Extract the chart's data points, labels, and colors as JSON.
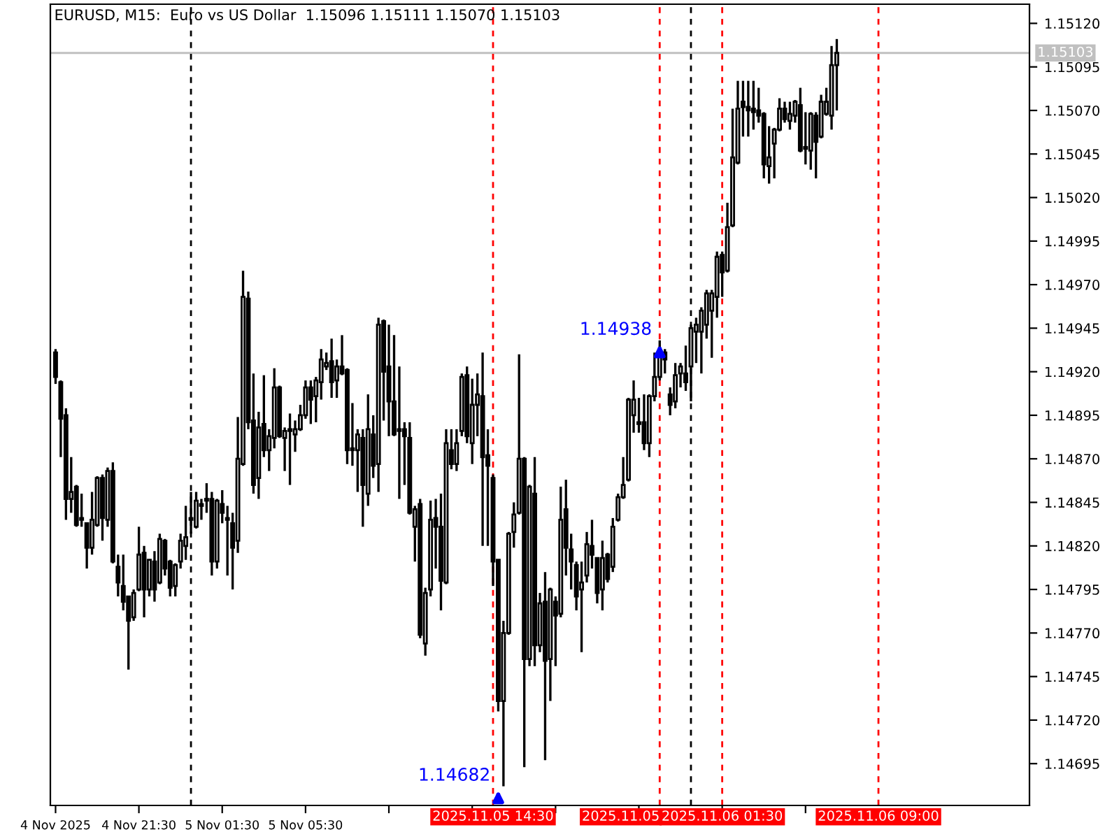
{
  "chart_data": {
    "type": "candlestick",
    "title": "EURUSD, M15:  Euro vs US Dollar  1.15096 1.15111 1.15070 1.15103",
    "x": [
      "2025-11-04T17:30",
      "2025-11-04T17:45",
      "2025-11-04T18:00",
      "2025-11-04T18:15",
      "2025-11-04T18:30",
      "2025-11-04T18:45",
      "2025-11-04T19:00",
      "2025-11-04T19:15",
      "2025-11-04T19:30",
      "2025-11-04T19:45",
      "2025-11-04T20:00",
      "2025-11-04T20:15",
      "2025-11-04T20:30",
      "2025-11-04T20:45",
      "2025-11-04T21:00",
      "2025-11-04T21:15",
      "2025-11-04T21:30",
      "2025-11-04T21:45",
      "2025-11-04T22:00",
      "2025-11-04T22:15",
      "2025-11-04T22:30",
      "2025-11-04T22:45",
      "2025-11-04T23:00",
      "2025-11-04T23:15",
      "2025-11-04T23:30",
      "2025-11-04T23:45",
      "2025-11-05T00:00",
      "2025-11-05T00:15",
      "2025-11-05T00:30",
      "2025-11-05T00:45",
      "2025-11-05T01:00",
      "2025-11-05T01:15",
      "2025-11-05T01:30",
      "2025-11-05T01:45",
      "2025-11-05T02:00",
      "2025-11-05T02:15",
      "2025-11-05T02:30",
      "2025-11-05T02:45",
      "2025-11-05T03:00",
      "2025-11-05T03:15",
      "2025-11-05T03:30",
      "2025-11-05T03:45",
      "2025-11-05T04:00",
      "2025-11-05T04:15",
      "2025-11-05T04:30",
      "2025-11-05T04:45",
      "2025-11-05T05:00",
      "2025-11-05T05:15",
      "2025-11-05T05:30",
      "2025-11-05T05:45",
      "2025-11-05T06:00",
      "2025-11-05T06:15",
      "2025-11-05T06:30",
      "2025-11-05T06:45",
      "2025-11-05T07:00",
      "2025-11-05T07:15",
      "2025-11-05T07:30",
      "2025-11-05T07:45",
      "2025-11-05T08:00",
      "2025-11-05T08:15",
      "2025-11-05T08:30",
      "2025-11-05T08:45",
      "2025-11-05T09:00",
      "2025-11-05T09:15",
      "2025-11-05T09:30",
      "2025-11-05T09:45",
      "2025-11-05T10:00",
      "2025-11-05T10:15",
      "2025-11-05T10:30",
      "2025-11-05T10:45",
      "2025-11-05T11:00",
      "2025-11-05T11:15",
      "2025-11-05T11:30",
      "2025-11-05T11:45",
      "2025-11-05T12:00",
      "2025-11-05T12:15",
      "2025-11-05T12:30",
      "2025-11-05T12:45",
      "2025-11-05T13:00",
      "2025-11-05T13:15",
      "2025-11-05T13:30",
      "2025-11-05T13:45",
      "2025-11-05T14:00",
      "2025-11-05T14:15",
      "2025-11-05T14:30",
      "2025-11-05T14:45",
      "2025-11-05T15:00",
      "2025-11-05T15:15",
      "2025-11-05T15:30",
      "2025-11-05T15:45",
      "2025-11-05T16:00",
      "2025-11-05T16:15",
      "2025-11-05T16:30",
      "2025-11-05T16:45",
      "2025-11-05T17:00",
      "2025-11-05T17:15",
      "2025-11-05T17:30",
      "2025-11-05T17:45",
      "2025-11-05T18:00",
      "2025-11-05T18:15",
      "2025-11-05T18:30",
      "2025-11-05T18:45",
      "2025-11-05T19:00",
      "2025-11-05T19:15",
      "2025-11-05T19:30",
      "2025-11-05T19:45",
      "2025-11-05T20:00",
      "2025-11-05T20:15",
      "2025-11-05T20:30",
      "2025-11-05T20:45",
      "2025-11-05T21:00",
      "2025-11-05T21:15",
      "2025-11-05T21:30",
      "2025-11-05T21:45",
      "2025-11-05T22:00",
      "2025-11-05T22:15",
      "2025-11-05T22:30",
      "2025-11-05T22:45",
      "2025-11-05T23:00",
      "2025-11-05T23:15",
      "2025-11-05T23:30",
      "2025-11-05T23:45",
      "2025-11-06T00:00",
      "2025-11-06T00:15",
      "2025-11-06T00:30",
      "2025-11-06T00:45",
      "2025-11-06T01:00",
      "2025-11-06T01:15",
      "2025-11-06T01:30",
      "2025-11-06T01:45",
      "2025-11-06T02:00",
      "2025-11-06T02:15",
      "2025-11-06T02:30",
      "2025-11-06T02:45",
      "2025-11-06T03:00",
      "2025-11-06T03:15",
      "2025-11-06T03:30",
      "2025-11-06T03:45",
      "2025-11-06T04:00",
      "2025-11-06T04:15",
      "2025-11-06T04:30",
      "2025-11-06T04:45",
      "2025-11-06T05:00",
      "2025-11-06T05:15",
      "2025-11-06T05:30",
      "2025-11-06T05:45",
      "2025-11-06T06:00",
      "2025-11-06T06:15",
      "2025-11-06T06:30",
      "2025-11-06T06:45",
      "2025-11-06T07:00"
    ],
    "ohlc": [
      [
        1.14931,
        1.14933,
        1.14913,
        1.14917
      ],
      [
        1.14914,
        1.14915,
        1.14871,
        1.14893
      ],
      [
        1.14895,
        1.14899,
        1.14835,
        1.14847
      ],
      [
        1.14847,
        1.14871,
        1.14839,
        1.14851
      ],
      [
        1.14854,
        1.14855,
        1.14831,
        1.14832
      ],
      [
        1.14835,
        1.1485,
        1.14831,
        1.14836
      ],
      [
        1.14833,
        1.14833,
        1.14807,
        1.14819
      ],
      [
        1.14819,
        1.14851,
        1.14815,
        1.14835
      ],
      [
        1.14832,
        1.1486,
        1.14831,
        1.14859
      ],
      [
        1.14859,
        1.14861,
        1.14823,
        1.14836
      ],
      [
        1.14835,
        1.14865,
        1.14831,
        1.14863
      ],
      [
        1.14863,
        1.14868,
        1.1481,
        1.14811
      ],
      [
        1.14808,
        1.14815,
        1.14791,
        1.14799
      ],
      [
        1.14797,
        1.14815,
        1.14783,
        1.14788
      ],
      [
        1.14791,
        1.14791,
        1.14749,
        1.14777
      ],
      [
        1.14779,
        1.14795,
        1.14777,
        1.14793
      ],
      [
        1.14795,
        1.14831,
        1.14794,
        1.14815
      ],
      [
        1.14816,
        1.1482,
        1.14779,
        1.14795
      ],
      [
        1.14795,
        1.14812,
        1.14791,
        1.14812
      ],
      [
        1.14811,
        1.14817,
        1.14788,
        1.14795
      ],
      [
        1.14799,
        1.14827,
        1.14798,
        1.14824
      ],
      [
        1.14823,
        1.14824,
        1.14803,
        1.14807
      ],
      [
        1.14811,
        1.14812,
        1.14791,
        1.14796
      ],
      [
        1.14797,
        1.1481,
        1.14791,
        1.14809
      ],
      [
        1.14811,
        1.14827,
        1.14807,
        1.14823
      ],
      [
        1.1482,
        1.14843,
        1.14812,
        1.14825
      ],
      [
        1.14835,
        1.14851,
        1.14827,
        1.14836
      ],
      [
        1.14831,
        1.14851,
        1.1483,
        1.14846
      ],
      [
        1.14843,
        1.14847,
        1.14835,
        1.14844
      ],
      [
        1.14846,
        1.14856,
        1.14839,
        1.14847
      ],
      [
        1.14847,
        1.14851,
        1.14803,
        1.14811
      ],
      [
        1.14811,
        1.14847,
        1.14807,
        1.14846
      ],
      [
        1.14844,
        1.14852,
        1.14833,
        1.14839
      ],
      [
        1.14836,
        1.14843,
        1.14803,
        1.14835
      ],
      [
        1.14833,
        1.14839,
        1.14795,
        1.14819
      ],
      [
        1.14823,
        1.14894,
        1.14816,
        1.1487
      ],
      [
        1.14867,
        1.14978,
        1.14866,
        1.14963
      ],
      [
        1.14962,
        1.14966,
        1.14887,
        1.14891
      ],
      [
        1.14892,
        1.14919,
        1.1485,
        1.14855
      ],
      [
        1.14859,
        1.14897,
        1.14847,
        1.14888
      ],
      [
        1.1489,
        1.14918,
        1.14871,
        1.14875
      ],
      [
        1.14875,
        1.14887,
        1.14863,
        1.14883
      ],
      [
        1.14882,
        1.14922,
        1.14876,
        1.14911
      ],
      [
        1.14911,
        1.14912,
        1.14882,
        1.14883
      ],
      [
        1.14882,
        1.14888,
        1.14863,
        1.14886
      ],
      [
        1.14887,
        1.14896,
        1.14855,
        1.14886
      ],
      [
        1.14884,
        1.14892,
        1.14874,
        1.14887
      ],
      [
        1.14887,
        1.14901,
        1.14886,
        1.14895
      ],
      [
        1.14895,
        1.14915,
        1.14893,
        1.14911
      ],
      [
        1.14911,
        1.14915,
        1.1489,
        1.14904
      ],
      [
        1.14906,
        1.14917,
        1.14891,
        1.14915
      ],
      [
        1.14914,
        1.14933,
        1.14904,
        1.14927
      ],
      [
        1.14923,
        1.14931,
        1.14921,
        1.14925
      ],
      [
        1.14926,
        1.14939,
        1.14905,
        1.14914
      ],
      [
        1.14915,
        1.14927,
        1.14905,
        1.14923
      ],
      [
        1.14923,
        1.14941,
        1.14918,
        1.14919
      ],
      [
        1.14921,
        1.14922,
        1.14867,
        1.14875
      ],
      [
        1.14875,
        1.14902,
        1.14866,
        1.14876
      ],
      [
        1.14875,
        1.14887,
        1.14851,
        1.14884
      ],
      [
        1.14882,
        1.14887,
        1.14831,
        1.14855
      ],
      [
        1.1485,
        1.14907,
        1.14843,
        1.14887
      ],
      [
        1.14884,
        1.14895,
        1.14859,
        1.14866
      ],
      [
        1.14867,
        1.14951,
        1.14851,
        1.14947
      ],
      [
        1.14949,
        1.1495,
        1.14892,
        1.1492
      ],
      [
        1.14923,
        1.14947,
        1.14883,
        1.14903
      ],
      [
        1.14903,
        1.14941,
        1.14883,
        1.14884
      ],
      [
        1.14887,
        1.14923,
        1.14847,
        1.14886
      ],
      [
        1.14887,
        1.14891,
        1.14855,
        1.14883
      ],
      [
        1.14882,
        1.14891,
        1.14838,
        1.14839
      ],
      [
        1.14831,
        1.14843,
        1.14811,
        1.14841
      ],
      [
        1.14844,
        1.14847,
        1.14767,
        1.14769
      ],
      [
        1.14764,
        1.14796,
        1.14757,
        1.14793
      ],
      [
        1.14795,
        1.14846,
        1.14791,
        1.14835
      ],
      [
        1.14836,
        1.14847,
        1.14807,
        1.14831
      ],
      [
        1.14831,
        1.1485,
        1.14783,
        1.148
      ],
      [
        1.14799,
        1.14887,
        1.14798,
        1.14879
      ],
      [
        1.14875,
        1.14887,
        1.14864,
        1.14867
      ],
      [
        1.14867,
        1.14887,
        1.14863,
        1.14879
      ],
      [
        1.14886,
        1.14919,
        1.14883,
        1.14917
      ],
      [
        1.14918,
        1.14923,
        1.14879,
        1.14883
      ],
      [
        1.14879,
        1.14916,
        1.14867,
        1.14901
      ],
      [
        1.14901,
        1.14919,
        1.14883,
        1.14907
      ],
      [
        1.14906,
        1.14931,
        1.1482,
        1.14871
      ],
      [
        1.14872,
        1.14887,
        1.1482,
        1.14866
      ],
      [
        1.14859,
        1.14861,
        1.14797,
        1.14811
      ],
      [
        1.14812,
        1.14812,
        1.14725,
        1.14731
      ],
      [
        1.14731,
        1.14777,
        1.14682,
        1.1477
      ],
      [
        1.1477,
        1.14828,
        1.14769,
        1.14827
      ],
      [
        1.14828,
        1.14845,
        1.14819,
        1.14838
      ],
      [
        1.14839,
        1.1493,
        1.14838,
        1.1487
      ],
      [
        1.1487,
        1.14871,
        1.14693,
        1.14755
      ],
      [
        1.14755,
        1.14855,
        1.14751,
        1.14854
      ],
      [
        1.1485,
        1.14871,
        1.14751,
        1.14763
      ],
      [
        1.14763,
        1.14793,
        1.14759,
        1.14787
      ],
      [
        1.14788,
        1.14805,
        1.14697,
        1.14754
      ],
      [
        1.14755,
        1.14796,
        1.14731,
        1.14795
      ],
      [
        1.14788,
        1.14791,
        1.14751,
        1.1478
      ],
      [
        1.14781,
        1.14854,
        1.14779,
        1.14835
      ],
      [
        1.14841,
        1.14858,
        1.14803,
        1.14819
      ],
      [
        1.14818,
        1.14827,
        1.14795,
        1.14811
      ],
      [
        1.14809,
        1.14811,
        1.14783,
        1.14791
      ],
      [
        1.14795,
        1.14811,
        1.14759,
        1.14799
      ],
      [
        1.14803,
        1.14828,
        1.14799,
        1.14821
      ],
      [
        1.1482,
        1.14835,
        1.14807,
        1.14815
      ],
      [
        1.14813,
        1.14813,
        1.14787,
        1.14793
      ],
      [
        1.14795,
        1.14823,
        1.14783,
        1.14813
      ],
      [
        1.14815,
        1.14816,
        1.14799,
        1.14801
      ],
      [
        1.14808,
        1.14836,
        1.14805,
        1.14831
      ],
      [
        1.14835,
        1.1485,
        1.14834,
        1.14848
      ],
      [
        1.14848,
        1.14871,
        1.14847,
        1.14855
      ],
      [
        1.14858,
        1.14905,
        1.14857,
        1.14904
      ],
      [
        1.14895,
        1.14915,
        1.14885,
        1.14904
      ],
      [
        1.14891,
        1.14905,
        1.14885,
        1.1489
      ],
      [
        1.14891,
        1.14907,
        1.14875,
        1.14879
      ],
      [
        1.14879,
        1.14907,
        1.14871,
        1.14906
      ],
      [
        1.14906,
        1.14931,
        1.14903,
        1.14917
      ],
      [
        1.14917,
        1.14938,
        1.14915,
        1.1493
      ],
      [
        1.14931,
        1.14933,
        1.14919,
        1.14927
      ],
      [
        1.14907,
        1.14911,
        1.14895,
        1.14901
      ],
      [
        1.14903,
        1.14925,
        1.14899,
        1.14918
      ],
      [
        1.14919,
        1.14925,
        1.14911,
        1.14923
      ],
      [
        1.14919,
        1.14935,
        1.14909,
        1.14914
      ],
      [
        1.14923,
        1.14947,
        1.14903,
        1.14945
      ],
      [
        1.14943,
        1.14951,
        1.14925,
        1.14947
      ],
      [
        1.14943,
        1.14957,
        1.14919,
        1.14955
      ],
      [
        1.14947,
        1.14967,
        1.14939,
        1.14965
      ],
      [
        1.14955,
        1.14967,
        1.14928,
        1.14965
      ],
      [
        1.14963,
        1.14989,
        1.14951,
        1.14986
      ],
      [
        1.14987,
        1.14989,
        1.14963,
        1.14977
      ],
      [
        1.14978,
        1.15017,
        1.14977,
        1.15003
      ],
      [
        1.15004,
        1.15071,
        1.15003,
        1.15043
      ],
      [
        1.1504,
        1.15087,
        1.15039,
        1.15071
      ],
      [
        1.15075,
        1.15087,
        1.15055,
        1.15072
      ],
      [
        1.15072,
        1.15087,
        1.15055,
        1.1507
      ],
      [
        1.15071,
        1.15087,
        1.15059,
        1.15069
      ],
      [
        1.1507,
        1.15083,
        1.15063,
        1.15067
      ],
      [
        1.15068,
        1.15069,
        1.15031,
        1.15039
      ],
      [
        1.15038,
        1.15061,
        1.15028,
        1.15043
      ],
      [
        1.15051,
        1.1506,
        1.15031,
        1.15059
      ],
      [
        1.15059,
        1.15077,
        1.15058,
        1.15071
      ],
      [
        1.15071,
        1.15075,
        1.15063,
        1.15065
      ],
      [
        1.15064,
        1.15075,
        1.15059,
        1.15068
      ],
      [
        1.15067,
        1.15076,
        1.15063,
        1.15075
      ],
      [
        1.15073,
        1.15083,
        1.15046,
        1.15047
      ],
      [
        1.15049,
        1.15069,
        1.15039,
        1.15048
      ],
      [
        1.15047,
        1.15069,
        1.15036,
        1.15068
      ],
      [
        1.15067,
        1.15069,
        1.15031,
        1.15052
      ],
      [
        1.15055,
        1.15079,
        1.15054,
        1.15075
      ],
      [
        1.15068,
        1.15083,
        1.15067,
        1.15075
      ],
      [
        1.15067,
        1.15107,
        1.15059,
        1.15096
      ],
      [
        1.15096,
        1.15111,
        1.1507,
        1.15103
      ]
    ],
    "xlim": [
      "2025-11-04T17:15",
      "2025-11-06T16:15"
    ],
    "xticks": [
      {
        "value": "2025-11-04T17:30",
        "label": "4 Nov 2025"
      },
      {
        "value": "2025-11-04T21:30",
        "label": "4 Nov 21:30"
      },
      {
        "value": "2025-11-05T01:30",
        "label": "5 Nov 01:30"
      },
      {
        "value": "2025-11-05T05:30",
        "label": "5 Nov 05:30"
      },
      {
        "value": "2025-11-05T09:30",
        "label": null
      },
      {
        "value": "2025-11-05T13:30",
        "label": null
      },
      {
        "value": "2025-11-05T17:30",
        "label": null
      },
      {
        "value": "2025-11-05T21:30",
        "label": null
      },
      {
        "value": "2025-11-06T01:30",
        "label": null
      },
      {
        "value": "2025-11-06T05:30",
        "label": null
      }
    ],
    "ylim": [
      1.14671,
      1.15131
    ],
    "yticks": [
      1.14695,
      {
        "value": 1.1472,
        "label": "1.14720"
      },
      1.14745,
      {
        "value": 1.1477,
        "label": "1.14770"
      },
      1.14795,
      {
        "value": 1.1482,
        "label": "1.14820"
      },
      1.14845,
      {
        "value": 1.1487,
        "label": "1.14870"
      },
      1.14895,
      {
        "value": 1.1492,
        "label": "1.14920"
      },
      1.14945,
      {
        "value": 1.1497,
        "label": "1.14970"
      },
      1.14995,
      {
        "value": 1.1502,
        "label": "1.15020"
      },
      1.15045,
      {
        "value": 1.1507,
        "label": "1.15070"
      },
      1.15095,
      {
        "value": 1.1512,
        "label": "1.15120"
      }
    ],
    "ref_lines": [
      {
        "axis": "x",
        "value": "2025-11-05T00:00",
        "color": "#000000",
        "line_style": "dashed"
      },
      {
        "axis": "x",
        "value": "2025-11-06T00:00",
        "color": "#000000",
        "line_style": "dashed"
      },
      {
        "axis": "x",
        "value": "2025-11-05T14:30",
        "label": "2025.11.05 14:30",
        "color": "#ff0000",
        "line_style": "dashed"
      },
      {
        "axis": "x",
        "value": "2025-11-05T22:30",
        "label": "2025.11.05",
        "color": "#ff0000",
        "line_style": "dashed"
      },
      {
        "axis": "x",
        "value": "2025-11-06T01:30",
        "label": "2025.11.06 01:30",
        "color": "#ff0000",
        "line_style": "dashed"
      },
      {
        "axis": "x",
        "value": "2025-11-06T09:00",
        "label": "2025.11.06 09:00",
        "color": "#ff0000",
        "line_style": "dashed"
      },
      {
        "axis": "y",
        "value": 1.15103,
        "label": "1.15103",
        "color": "#c0c0c0",
        "line_style": "solid"
      }
    ],
    "annotations": [
      {
        "text": "1.14682",
        "x": "2025-11-05T14:45",
        "y": 1.14682
      },
      {
        "text": "1.14938",
        "x": "2025-11-05T22:30",
        "y": 1.14938
      }
    ],
    "grid": false,
    "legend": false
  }
}
